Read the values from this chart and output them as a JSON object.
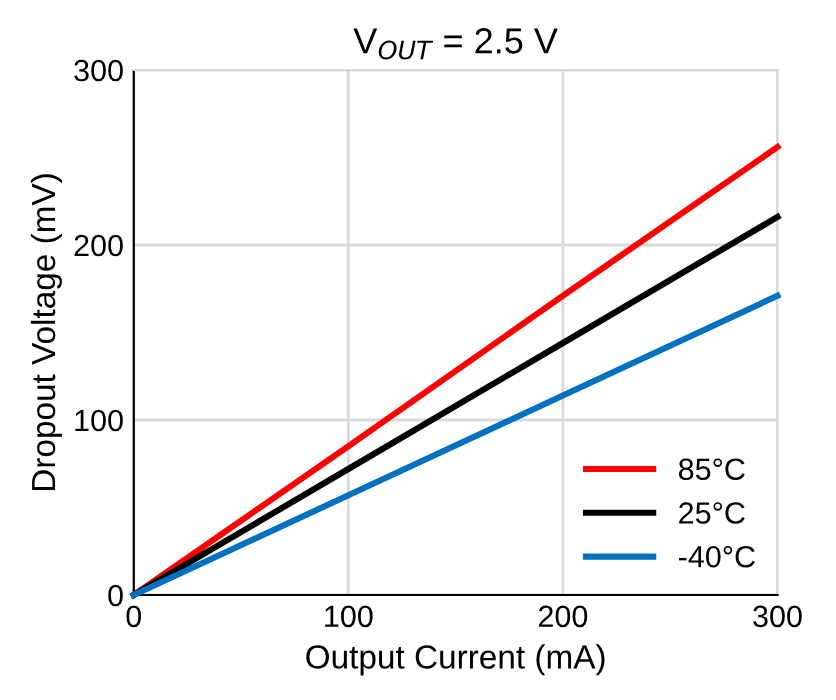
{
  "chart_data": {
    "type": "line",
    "title": "V$_{OUT}$ = 2.5 V",
    "xlabel": "Output Current (mA)",
    "ylabel": "Dropout Voltage (mV)",
    "x": [
      0,
      100,
      200,
      300
    ],
    "series": [
      {
        "name": "85°C",
        "color": "#ff0000",
        "values": [
          0,
          85,
          171,
          256
        ]
      },
      {
        "name": "25°C",
        "color": "#000000",
        "values": [
          0,
          72,
          144,
          216
        ]
      },
      {
        "name": "-40°C",
        "color": "#0070c0",
        "values": [
          0,
          57,
          114,
          171
        ]
      }
    ],
    "xlim": [
      0,
      300
    ],
    "xticks": [
      0,
      100,
      200,
      300
    ],
    "ylim": [
      0,
      300
    ],
    "yticks": [
      0,
      100,
      200,
      300
    ],
    "grid": true,
    "legend": "bottom right",
    "marker": "none",
    "line_style": "solid"
  }
}
